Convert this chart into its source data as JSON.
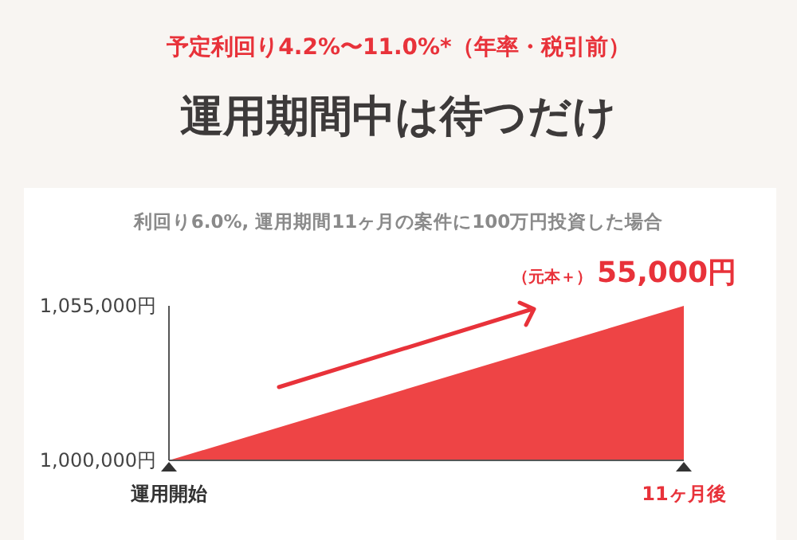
{
  "chart_data": {
    "type": "area",
    "title": "運用期間中は待つだけ",
    "subtitle": "予定利回り4.2%〜11.0%*（年率・税引前）",
    "categories": [
      "運用開始",
      "11ヶ月後"
    ],
    "series": [
      {
        "color": "#ee4445",
        "values": [
          1000000,
          1055000
        ]
      }
    ],
    "ylim": [
      1000000,
      1055000
    ],
    "yticks": [
      {
        "value": 1000000,
        "label": "1,000,000円"
      },
      {
        "value": 1055000,
        "label": "1,055,000円"
      }
    ],
    "annotations": [
      "利回り6.0%, 運用期間11ヶ月の案件に100万円投資した場合",
      {
        "text": "（元本＋）55,000円",
        "x": "11ヶ月後",
        "y": 1055000
      }
    ],
    "grid": false
  }
}
